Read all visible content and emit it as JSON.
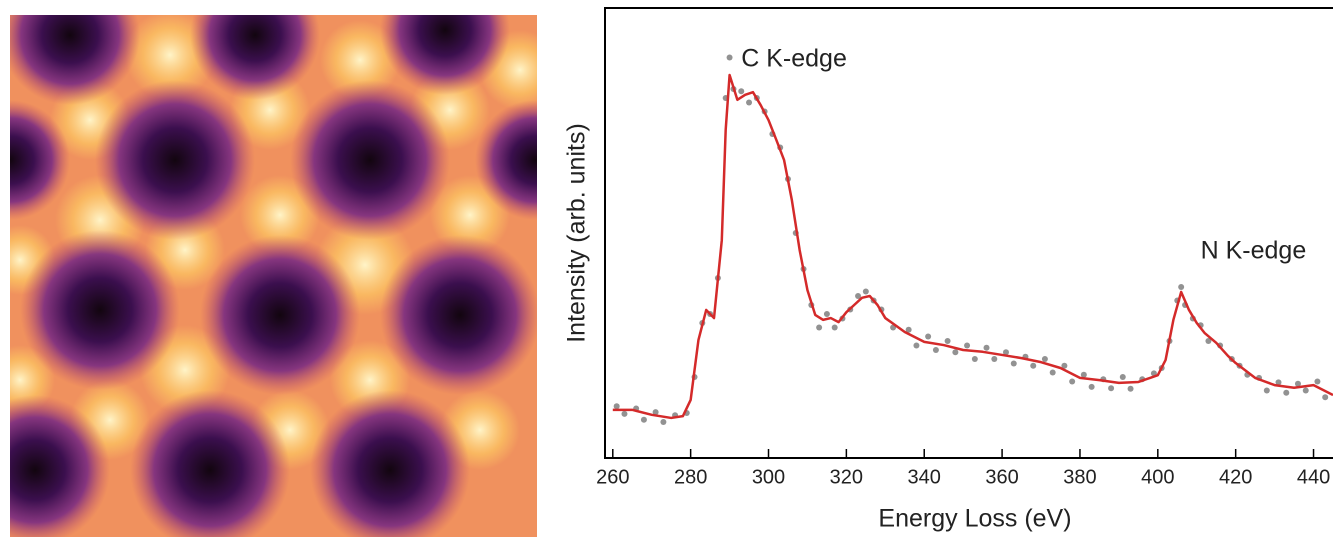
{
  "chart_data": {
    "type": "line",
    "xlabel": "Energy Loss (eV)",
    "ylabel": "Intensity (arb. units)",
    "xlim": [
      258,
      445
    ],
    "ylim": [
      0,
      100
    ],
    "xticks": [
      260,
      280,
      300,
      320,
      340,
      360,
      380,
      400,
      420,
      440
    ],
    "annotations": [
      {
        "text": "C K-edge",
        "x": 293,
        "y": 88.5
      },
      {
        "text": "N K-edge",
        "x": 411,
        "y": 45.8
      }
    ],
    "series": [
      {
        "type": "scatter",
        "color": "#4a4a4a",
        "x": [
          261,
          263,
          266,
          268,
          271,
          273,
          276,
          279,
          281,
          283,
          285,
          287,
          289,
          290,
          291,
          293,
          295,
          297,
          299,
          301,
          303,
          305,
          307,
          309,
          311,
          313,
          315,
          317,
          319,
          321,
          323,
          325,
          327,
          329,
          332,
          336,
          338,
          341,
          343,
          346,
          348,
          351,
          353,
          356,
          358,
          361,
          363,
          366,
          368,
          371,
          373,
          376,
          378,
          381,
          383,
          386,
          388,
          391,
          393,
          396,
          399,
          401,
          403,
          405,
          406,
          407,
          409,
          411,
          413,
          416,
          419,
          421,
          423,
          426,
          428,
          431,
          433,
          436,
          438,
          441,
          443
        ],
        "values": [
          11.5,
          9.8,
          11,
          8.5,
          10.2,
          8,
          9.5,
          10,
          18,
          30,
          32,
          40,
          80,
          89,
          82,
          81.5,
          79,
          80,
          77,
          72,
          69,
          62,
          50,
          42,
          34,
          29,
          32,
          29,
          31,
          33,
          36,
          37,
          35,
          33,
          29,
          28.5,
          25,
          27,
          24,
          26,
          23.5,
          25,
          22,
          24.5,
          22,
          23.5,
          21,
          22.5,
          20.5,
          22,
          19,
          20.5,
          17,
          18.5,
          15.8,
          17.5,
          15.5,
          18,
          15.4,
          17.5,
          18.8,
          20,
          26,
          35,
          38,
          34,
          31,
          29.5,
          26,
          25,
          22,
          20.5,
          18.5,
          17.8,
          15,
          16.8,
          14.5,
          16.5,
          15,
          17,
          13.5
        ]
      },
      {
        "type": "line",
        "color": "#d42a2a",
        "x": [
          260,
          265,
          270,
          275,
          278,
          280,
          282,
          284,
          286,
          288,
          289,
          290,
          292,
          294,
          296,
          298,
          300,
          302,
          304,
          306,
          308,
          310,
          312,
          314,
          316,
          318,
          320,
          322,
          324,
          326,
          328,
          330,
          335,
          340,
          345,
          350,
          355,
          360,
          365,
          370,
          375,
          380,
          385,
          390,
          395,
          398,
          400,
          402,
          404,
          406,
          408,
          410,
          412,
          415,
          418,
          420,
          425,
          430,
          435,
          440,
          445
        ],
        "values": [
          10.7,
          10.7,
          9.6,
          8.9,
          9.3,
          12.9,
          26.2,
          32.9,
          31.1,
          48.4,
          72.9,
          85.1,
          79.6,
          80.7,
          81.3,
          78.4,
          75.1,
          70.7,
          66.2,
          57.3,
          46.2,
          37.3,
          31.8,
          30.7,
          31.1,
          30.2,
          32.4,
          34,
          35.6,
          36,
          34,
          31.1,
          28,
          25.8,
          25.1,
          24,
          23.6,
          22.9,
          22.2,
          21.3,
          20,
          17.8,
          17.3,
          16.7,
          16.9,
          17.8,
          18.4,
          21.8,
          30.7,
          36.9,
          32.9,
          30,
          27.8,
          25.6,
          22.7,
          21.1,
          17.8,
          16.2,
          15.6,
          16.2,
          14
        ]
      }
    ]
  }
}
